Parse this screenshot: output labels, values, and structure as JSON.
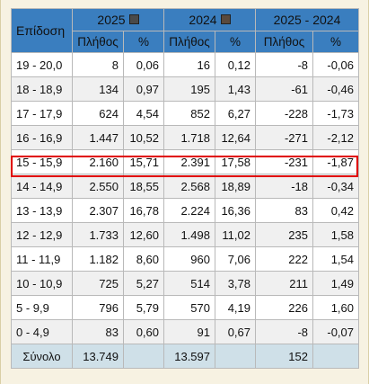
{
  "header": {
    "range_label": "Επίδοση",
    "groups": [
      {
        "label": "2025",
        "legend_color": "#4a4a4a"
      },
      {
        "label": "2024",
        "legend_color": "#5a4a3e"
      },
      {
        "label": "2025 - 2024"
      }
    ],
    "sub_labels": [
      "Πλήθος",
      "%",
      "Πλήθος",
      "%",
      "Πλήθος",
      "%"
    ]
  },
  "rows": [
    {
      "range": "19 - 20,0",
      "c2025": "8",
      "p2025": "0,06",
      "c2024": "16",
      "p2024": "0,12",
      "dc": "-8",
      "dp": "-0,06"
    },
    {
      "range": "18 - 18,9",
      "c2025": "134",
      "p2025": "0,97",
      "c2024": "195",
      "p2024": "1,43",
      "dc": "-61",
      "dp": "-0,46"
    },
    {
      "range": "17 - 17,9",
      "c2025": "624",
      "p2025": "4,54",
      "c2024": "852",
      "p2024": "6,27",
      "dc": "-228",
      "dp": "-1,73"
    },
    {
      "range": "16 - 16,9",
      "c2025": "1.447",
      "p2025": "10,52",
      "c2024": "1.718",
      "p2024": "12,64",
      "dc": "-271",
      "dp": "-2,12"
    },
    {
      "range": "15 - 15,9",
      "c2025": "2.160",
      "p2025": "15,71",
      "c2024": "2.391",
      "p2024": "17,58",
      "dc": "-231",
      "dp": "-1,87"
    },
    {
      "range": "14 - 14,9",
      "c2025": "2.550",
      "p2025": "18,55",
      "c2024": "2.568",
      "p2024": "18,89",
      "dc": "-18",
      "dp": "-0,34"
    },
    {
      "range": "13 - 13,9",
      "c2025": "2.307",
      "p2025": "16,78",
      "c2024": "2.224",
      "p2024": "16,36",
      "dc": "83",
      "dp": "0,42"
    },
    {
      "range": "12 - 12,9",
      "c2025": "1.733",
      "p2025": "12,60",
      "c2024": "1.498",
      "p2024": "11,02",
      "dc": "235",
      "dp": "1,58"
    },
    {
      "range": "11 - 11,9",
      "c2025": "1.182",
      "p2025": "8,60",
      "c2024": "960",
      "p2024": "7,06",
      "dc": "222",
      "dp": "1,54"
    },
    {
      "range": "10 - 10,9",
      "c2025": "725",
      "p2025": "5,27",
      "c2024": "514",
      "p2024": "3,78",
      "dc": "211",
      "dp": "1,49"
    },
    {
      "range": "5 - 9,9",
      "c2025": "796",
      "p2025": "5,79",
      "c2024": "570",
      "p2024": "4,19",
      "dc": "226",
      "dp": "1,60"
    },
    {
      "range": "0 - 4,9",
      "c2025": "83",
      "p2025": "0,60",
      "c2024": "91",
      "p2024": "0,67",
      "dc": "-8",
      "dp": "-0,07"
    }
  ],
  "total": {
    "label": "Σύνολο",
    "c2025": "13.749",
    "p2025": "",
    "c2024": "13.597",
    "p2024": "",
    "dc": "152",
    "dp": ""
  },
  "highlighted_range": "15 - 15,9",
  "colors": {
    "header": "#3a7ebf",
    "total_row": "#cfe0e8",
    "highlight": "#e00000"
  }
}
